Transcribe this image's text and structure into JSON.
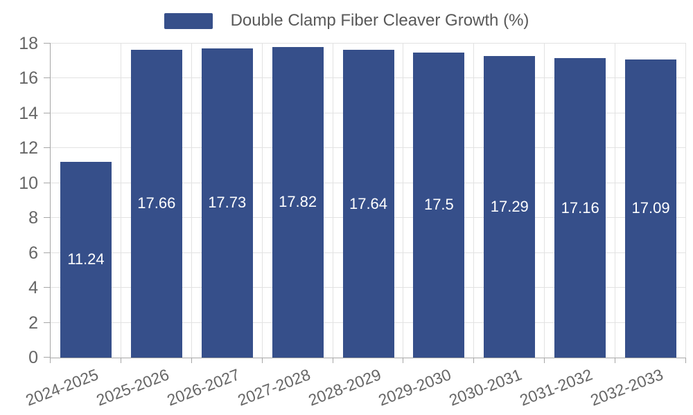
{
  "legend": {
    "label": "Double Clamp Fiber Cleaver Growth (%)"
  },
  "chart_data": {
    "type": "bar",
    "title": "Double Clamp Fiber Cleaver Growth (%)",
    "categories": [
      "2024-2025",
      "2025-2026",
      "2026-2027",
      "2027-2028",
      "2028-2029",
      "2029-2030",
      "2030-2031",
      "2031-2032",
      "2032-2033"
    ],
    "values": [
      11.24,
      17.66,
      17.73,
      17.82,
      17.64,
      17.5,
      17.29,
      17.16,
      17.09
    ],
    "series": [
      {
        "name": "Double Clamp Fiber Cleaver Growth (%)",
        "values": [
          11.24,
          17.66,
          17.73,
          17.82,
          17.64,
          17.5,
          17.29,
          17.16,
          17.09
        ]
      }
    ],
    "xlabel": "",
    "ylabel": "",
    "ylim": [
      0,
      18
    ],
    "yticks": [
      0,
      2,
      4,
      6,
      8,
      10,
      12,
      14,
      16,
      18
    ],
    "grid": true,
    "legend_position": "top-center",
    "bar_labels_inside": true
  },
  "colors": {
    "bar": "#364F8A",
    "bar_label": "#FFFFFF",
    "grid_line": "#E2E2E2",
    "axis_line": "#A6A6A6",
    "tick_text": "#666666",
    "legend_text": "#595959",
    "background": "#FFFFFF"
  }
}
